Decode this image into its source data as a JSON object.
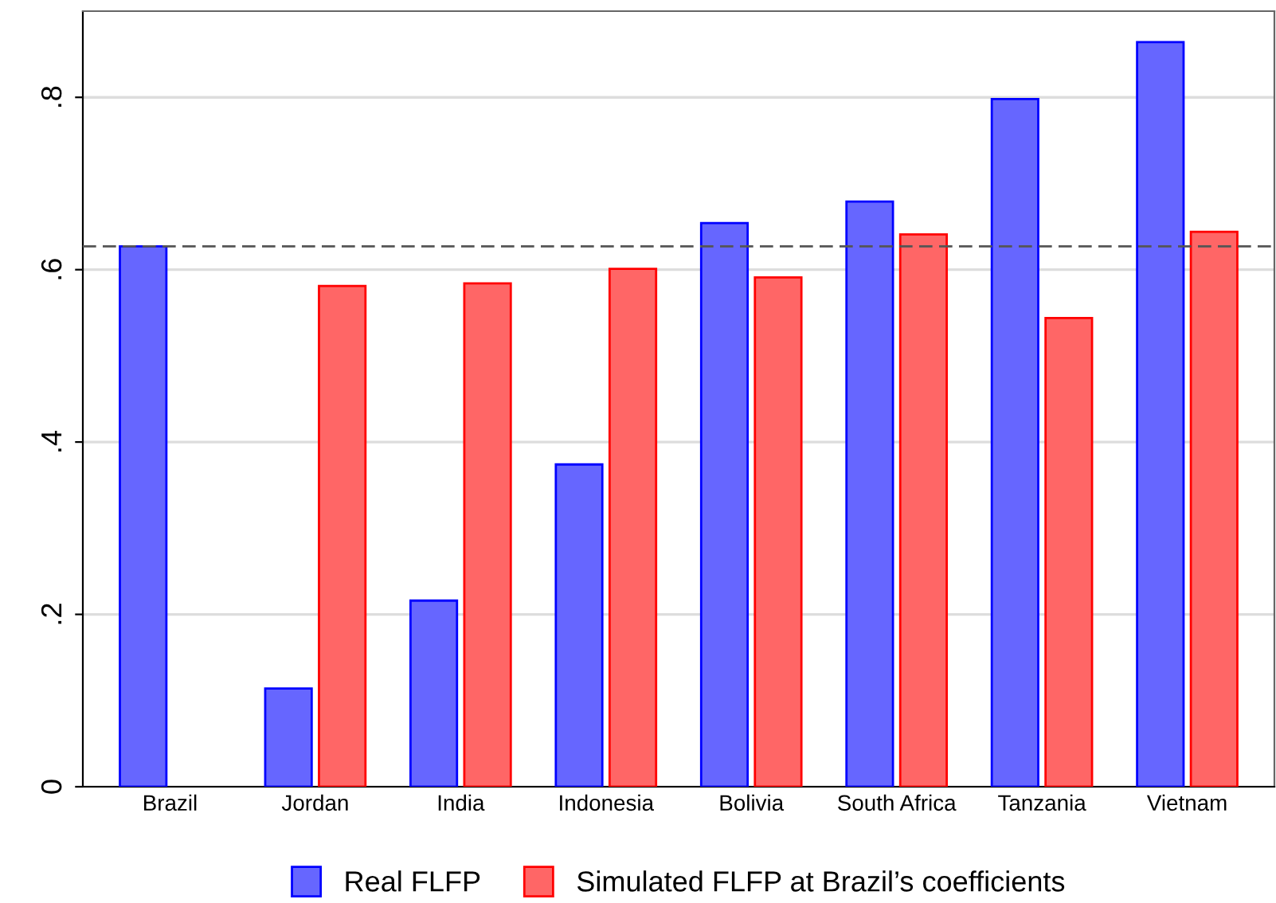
{
  "chart_data": {
    "type": "bar",
    "categories": [
      "Brazil",
      "Jordan",
      "India",
      "Indonesia",
      "Bolivia",
      "South Africa",
      "Tanzania",
      "Vietnam"
    ],
    "series": [
      {
        "name": "Real FLFP",
        "color": "#6666ff",
        "values": [
          0.627,
          0.114,
          0.216,
          0.374,
          0.654,
          0.679,
          0.798,
          0.864
        ]
      },
      {
        "name": "Simulated FLFP at Brazil’s coefficients",
        "color": "#ff6666",
        "values": [
          null,
          0.581,
          0.584,
          0.601,
          0.591,
          0.641,
          0.544,
          0.644
        ]
      }
    ],
    "ylim": [
      0,
      0.9
    ],
    "yticks": [
      {
        "value": 0,
        "label": "0"
      },
      {
        "value": 0.2,
        "label": ".2"
      },
      {
        "value": 0.4,
        "label": ".4"
      },
      {
        "value": 0.6,
        "label": ".6"
      },
      {
        "value": 0.8,
        "label": ".8"
      }
    ],
    "ref_lines": [
      {
        "axis": "y",
        "value": 0.627,
        "color": "#555555",
        "line_style": "dashed"
      }
    ],
    "grid": "y",
    "legend": "bottom"
  }
}
